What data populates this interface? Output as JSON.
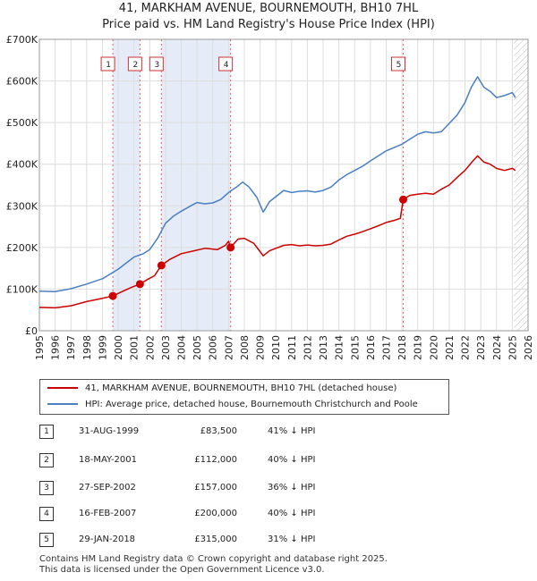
{
  "header": {
    "title": "41, MARKHAM AVENUE, BOURNEMOUTH, BH10 7HL",
    "subtitle": "Price paid vs. HM Land Registry's House Price Index (HPI)"
  },
  "chart_data": {
    "type": "line",
    "title": "41, MARKHAM AVENUE, BOURNEMOUTH, BH10 7HL",
    "subtitle": "Price paid vs. HM Land Registry's House Price Index (HPI)",
    "xlim": [
      1995,
      2026
    ],
    "ylim": [
      0,
      700000
    ],
    "x_ticks": [
      1995,
      1996,
      1997,
      1998,
      1999,
      2000,
      2001,
      2002,
      2003,
      2004,
      2005,
      2006,
      2007,
      2008,
      2009,
      2010,
      2011,
      2012,
      2013,
      2014,
      2015,
      2016,
      2017,
      2018,
      2019,
      2020,
      2021,
      2022,
      2023,
      2024,
      2025,
      2026
    ],
    "y_ticks": [
      {
        "value": 0,
        "label": "£0"
      },
      {
        "value": 100000,
        "label": "£100K"
      },
      {
        "value": 200000,
        "label": "£200K"
      },
      {
        "value": 300000,
        "label": "£300K"
      },
      {
        "value": 400000,
        "label": "£400K"
      },
      {
        "value": 500000,
        "label": "£500K"
      },
      {
        "value": 600000,
        "label": "£600K"
      },
      {
        "value": 700000,
        "label": "£700K"
      }
    ],
    "series": [
      {
        "name": "41, MARKHAM AVENUE, BOURNEMOUTH, BH10 7HL (detached house)",
        "color": "#cc0000",
        "points": [
          [
            1995.0,
            56000
          ],
          [
            1996.0,
            55000
          ],
          [
            1997.0,
            60000
          ],
          [
            1998.0,
            70000
          ],
          [
            1998.9,
            77000
          ],
          [
            1999.66,
            83500
          ],
          [
            2000.3,
            95000
          ],
          [
            2000.9,
            105000
          ],
          [
            2001.38,
            112000
          ],
          [
            2001.8,
            122000
          ],
          [
            2002.3,
            132000
          ],
          [
            2002.74,
            157000
          ],
          [
            2003.3,
            172000
          ],
          [
            2004.0,
            185000
          ],
          [
            2004.8,
            192000
          ],
          [
            2005.5,
            198000
          ],
          [
            2006.3,
            195000
          ],
          [
            2006.8,
            205000
          ],
          [
            2007.0,
            215000
          ],
          [
            2007.13,
            200000
          ],
          [
            2007.6,
            220000
          ],
          [
            2008.0,
            222000
          ],
          [
            2008.6,
            210000
          ],
          [
            2009.0,
            190000
          ],
          [
            2009.2,
            180000
          ],
          [
            2009.6,
            192000
          ],
          [
            2010.0,
            198000
          ],
          [
            2010.5,
            205000
          ],
          [
            2011.0,
            207000
          ],
          [
            2011.5,
            204000
          ],
          [
            2012.0,
            206000
          ],
          [
            2012.5,
            204000
          ],
          [
            2013.0,
            205000
          ],
          [
            2013.5,
            208000
          ],
          [
            2014.0,
            218000
          ],
          [
            2014.5,
            227000
          ],
          [
            2015.0,
            232000
          ],
          [
            2015.5,
            238000
          ],
          [
            2016.0,
            245000
          ],
          [
            2016.5,
            252000
          ],
          [
            2017.0,
            260000
          ],
          [
            2017.5,
            265000
          ],
          [
            2017.9,
            270000
          ],
          [
            2018.08,
            315000
          ],
          [
            2018.5,
            325000
          ],
          [
            2019.0,
            328000
          ],
          [
            2019.5,
            330000
          ],
          [
            2020.0,
            328000
          ],
          [
            2020.5,
            340000
          ],
          [
            2021.0,
            350000
          ],
          [
            2021.5,
            368000
          ],
          [
            2022.0,
            385000
          ],
          [
            2022.5,
            408000
          ],
          [
            2022.8,
            420000
          ],
          [
            2023.2,
            405000
          ],
          [
            2023.6,
            400000
          ],
          [
            2024.0,
            390000
          ],
          [
            2024.5,
            385000
          ],
          [
            2025.0,
            390000
          ],
          [
            2025.2,
            385000
          ]
        ]
      },
      {
        "name": "HPI: Average price, detached house, Bournemouth Christchurch and Poole",
        "color": "#4a7fc1",
        "points": [
          [
            1995.0,
            95000
          ],
          [
            1996.0,
            94000
          ],
          [
            1997.0,
            101000
          ],
          [
            1998.0,
            112000
          ],
          [
            1999.0,
            125000
          ],
          [
            2000.0,
            148000
          ],
          [
            2001.0,
            177000
          ],
          [
            2001.6,
            185000
          ],
          [
            2002.0,
            195000
          ],
          [
            2002.5,
            222000
          ],
          [
            2003.0,
            258000
          ],
          [
            2003.5,
            275000
          ],
          [
            2004.0,
            287000
          ],
          [
            2004.6,
            300000
          ],
          [
            2005.0,
            308000
          ],
          [
            2005.5,
            305000
          ],
          [
            2006.0,
            307000
          ],
          [
            2006.5,
            315000
          ],
          [
            2007.0,
            332000
          ],
          [
            2007.5,
            345000
          ],
          [
            2007.9,
            357000
          ],
          [
            2008.3,
            345000
          ],
          [
            2008.8,
            320000
          ],
          [
            2009.2,
            285000
          ],
          [
            2009.6,
            310000
          ],
          [
            2010.0,
            322000
          ],
          [
            2010.5,
            337000
          ],
          [
            2011.0,
            332000
          ],
          [
            2011.5,
            335000
          ],
          [
            2012.0,
            336000
          ],
          [
            2012.5,
            333000
          ],
          [
            2013.0,
            337000
          ],
          [
            2013.5,
            345000
          ],
          [
            2014.0,
            362000
          ],
          [
            2014.5,
            375000
          ],
          [
            2015.0,
            385000
          ],
          [
            2015.5,
            395000
          ],
          [
            2016.0,
            408000
          ],
          [
            2016.5,
            420000
          ],
          [
            2017.0,
            432000
          ],
          [
            2017.5,
            440000
          ],
          [
            2018.0,
            448000
          ],
          [
            2018.5,
            460000
          ],
          [
            2019.0,
            472000
          ],
          [
            2019.5,
            478000
          ],
          [
            2020.0,
            475000
          ],
          [
            2020.5,
            478000
          ],
          [
            2021.0,
            498000
          ],
          [
            2021.5,
            518000
          ],
          [
            2022.0,
            548000
          ],
          [
            2022.4,
            585000
          ],
          [
            2022.8,
            610000
          ],
          [
            2023.2,
            585000
          ],
          [
            2023.6,
            575000
          ],
          [
            2024.0,
            560000
          ],
          [
            2024.5,
            565000
          ],
          [
            2025.0,
            572000
          ],
          [
            2025.2,
            560000
          ]
        ]
      }
    ],
    "events": [
      {
        "id": "1",
        "x": 1999.66,
        "price": 83500
      },
      {
        "id": "2",
        "x": 2001.38,
        "price": 112000
      },
      {
        "id": "3",
        "x": 2002.74,
        "price": 157000
      },
      {
        "id": "4",
        "x": 2007.13,
        "price": 200000
      },
      {
        "id": "5",
        "x": 2018.08,
        "price": 315000
      }
    ],
    "shaded_ranges": [
      [
        1999.66,
        2001.38
      ],
      [
        2002.74,
        2007.13
      ]
    ],
    "hatched_after": 2025.1
  },
  "legend": {
    "items": [
      {
        "label": "41, MARKHAM AVENUE, BOURNEMOUTH, BH10 7HL (detached house)",
        "color": "#cc0000"
      },
      {
        "label": "HPI: Average price, detached house, Bournemouth Christchurch and Poole",
        "color": "#4a7fc1"
      }
    ]
  },
  "sales": [
    {
      "id": "1",
      "date": "31-AUG-1999",
      "price": "£83,500",
      "hpi": "41% ↓ HPI"
    },
    {
      "id": "2",
      "date": "18-MAY-2001",
      "price": "£112,000",
      "hpi": "40% ↓ HPI"
    },
    {
      "id": "3",
      "date": "27-SEP-2002",
      "price": "£157,000",
      "hpi": "36% ↓ HPI"
    },
    {
      "id": "4",
      "date": "16-FEB-2007",
      "price": "£200,000",
      "hpi": "40% ↓ HPI"
    },
    {
      "id": "5",
      "date": "29-JAN-2018",
      "price": "£315,000",
      "hpi": "31% ↓ HPI"
    }
  ],
  "footer": {
    "line1": "Contains HM Land Registry data © Crown copyright and database right 2025.",
    "line2": "This data is licensed under the Open Government Licence v3.0."
  }
}
